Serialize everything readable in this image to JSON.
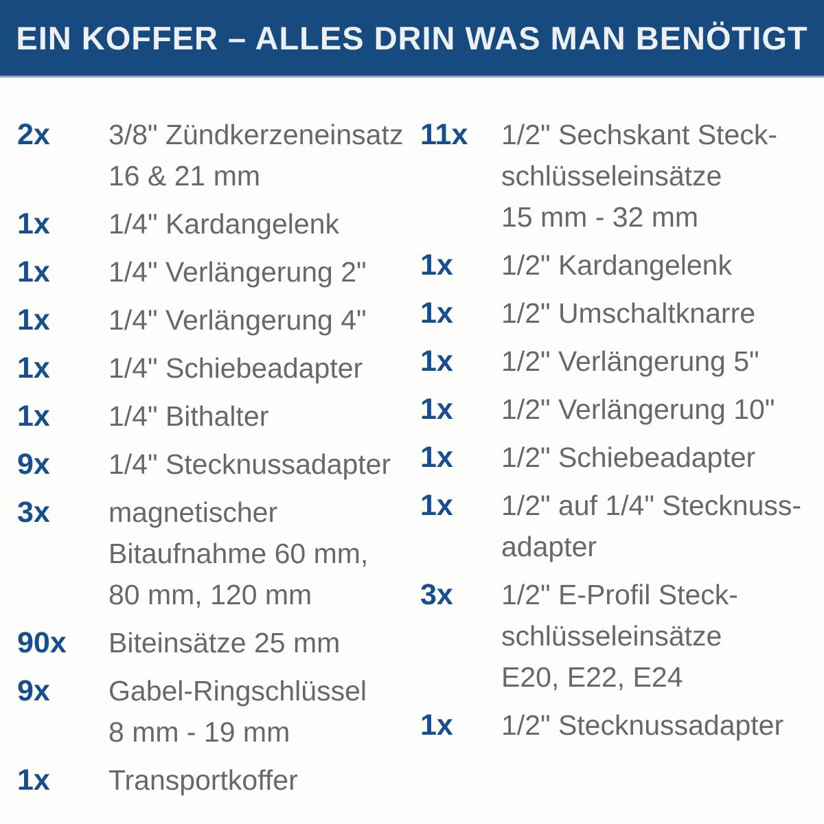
{
  "header": {
    "title": "EIN KOFFER – ALLES DRIN WAS MAN BENÖTIGT"
  },
  "colors": {
    "banner_background": "#174b80",
    "banner_text": "#edf0f2",
    "quantity_blue": "#174f8e",
    "description_gray": "#686868",
    "page_background": "#fdfdfb"
  },
  "list": {
    "left": [
      {
        "qty": "2x",
        "lines": [
          "3/8\" Zündkerzeneinsatz",
          "16 & 21 mm"
        ]
      },
      {
        "qty": "1x",
        "lines": [
          "1/4\" Kardangelenk"
        ]
      },
      {
        "qty": "1x",
        "lines": [
          "1/4\" Verlängerung 2\""
        ]
      },
      {
        "qty": "1x",
        "lines": [
          "1/4\" Verlängerung 4\""
        ]
      },
      {
        "qty": "1x",
        "lines": [
          "1/4\" Schiebeadapter"
        ]
      },
      {
        "qty": "1x",
        "lines": [
          "1/4\" Bithalter"
        ]
      },
      {
        "qty": "9x",
        "lines": [
          "1/4\" Stecknussadapter"
        ]
      },
      {
        "qty": "3x",
        "lines": [
          "magnetischer",
          "Bitaufnahme 60 mm,",
          "80 mm, 120 mm"
        ]
      },
      {
        "qty": "90x",
        "lines": [
          "Biteinsätze 25 mm"
        ]
      },
      {
        "qty": "9x",
        "lines": [
          "Gabel-Ringschlüssel",
          "8 mm - 19 mm"
        ]
      },
      {
        "qty": "1x",
        "lines": [
          "Transportkoffer"
        ]
      }
    ],
    "right": [
      {
        "qty": "11x",
        "lines": [
          "1/2\" Sechskant Steck-",
          "schlüsseleinsätze",
          "15 mm - 32 mm"
        ]
      },
      {
        "qty": "1x",
        "lines": [
          "1/2\" Kardangelenk"
        ]
      },
      {
        "qty": "1x",
        "lines": [
          "1/2\" Umschaltknarre"
        ]
      },
      {
        "qty": "1x",
        "lines": [
          "1/2\" Verlängerung 5\""
        ]
      },
      {
        "qty": "1x",
        "lines": [
          "1/2\" Verlängerung 10\""
        ]
      },
      {
        "qty": "1x",
        "lines": [
          "1/2\" Schiebeadapter"
        ]
      },
      {
        "qty": "1x",
        "lines": [
          "1/2\" auf 1/4\" Stecknuss-",
          "adapter"
        ]
      },
      {
        "qty": "3x",
        "lines": [
          "1/2\" E-Profil Steck-",
          "schlüsseleinsätze",
          "E20, E22, E24"
        ]
      },
      {
        "qty": "1x",
        "lines": [
          "1/2\" Stecknussadapter"
        ]
      }
    ]
  }
}
